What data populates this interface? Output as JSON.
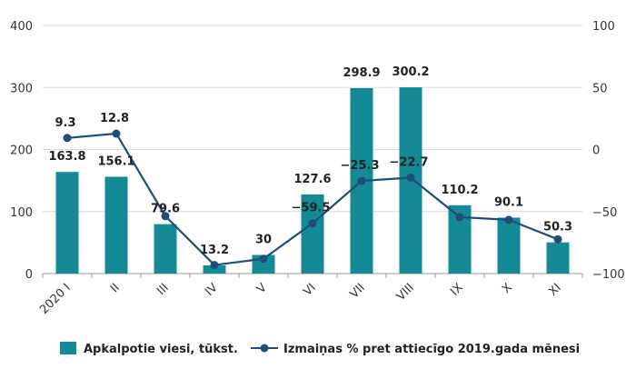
{
  "chart_data": {
    "type": "bar+line",
    "categories": [
      "2020 I",
      "II",
      "III",
      "IV",
      "V",
      "VI",
      "VII",
      "VIII",
      "IX",
      "X",
      "XI"
    ],
    "series": [
      {
        "name": "Apkalpotie viesi, tūkst.",
        "type": "bar",
        "axis": "left",
        "color": "#138a96",
        "values": [
          163.8,
          156.1,
          79.6,
          13.2,
          30,
          127.6,
          298.9,
          300.2,
          110.2,
          90.1,
          50.3
        ],
        "labels": [
          "163.8",
          "156.1",
          "79.6",
          "13.2",
          "30",
          "127.6",
          "298.9",
          "300.2",
          "110.2",
          "90.1",
          "50.3"
        ]
      },
      {
        "name": "Izmaiņas % pret attiecīgo 2019.gada mēnesi",
        "type": "line",
        "axis": "right",
        "color": "#1f4e79",
        "values": [
          9.3,
          12.8,
          -53.7,
          -93.1,
          -88.1,
          -59.5,
          -25.3,
          -22.7,
          -54.5,
          -56.7,
          -72.4
        ],
        "labels": [
          "9.3",
          "12.8",
          "",
          "",
          "",
          "−59.5",
          "−25.3",
          "−22.7",
          "",
          "",
          ""
        ]
      }
    ],
    "y_left": {
      "lim": [
        0,
        400
      ],
      "ticks": [
        "0",
        "100",
        "200",
        "300",
        "400"
      ]
    },
    "y_right": {
      "lim": [
        -100,
        100
      ],
      "ticks": [
        "−100",
        "−50",
        "0",
        "50",
        "100"
      ]
    },
    "grid": "horizontal",
    "legend": "bottom"
  }
}
